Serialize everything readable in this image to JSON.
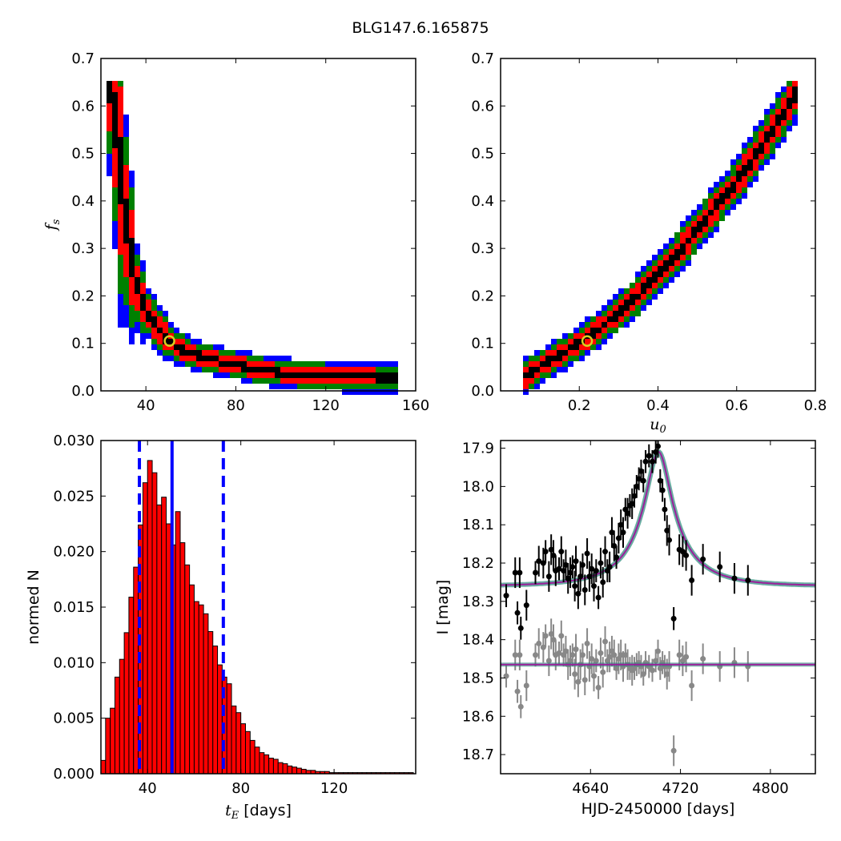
{
  "figure": {
    "title": "BLG147.6.165875"
  },
  "colors": {
    "black": "#000000",
    "red": "#ff0000",
    "green": "#008000",
    "blue": "#0000ff",
    "gray": "#888888",
    "purple": "#9b1f9b",
    "teal": "#2a8a7a",
    "yellow": "#d8d020"
  },
  "chart_data": [
    {
      "id": "fs_vs_tE",
      "type": "heatmap",
      "xlabel": "",
      "ylabel": "f_s",
      "xlim": [
        20,
        160
      ],
      "ylim": [
        0,
        0.7
      ],
      "xticks": [
        40,
        80,
        120,
        160
      ],
      "yticks": [
        0.0,
        0.1,
        0.2,
        0.3,
        0.4,
        0.5,
        0.6,
        0.7
      ],
      "ytick_labels": [
        "0.0",
        "0.1",
        "0.2",
        "0.3",
        "0.4",
        "0.5",
        "0.6",
        "0.7"
      ],
      "levels": [
        "black",
        "red",
        "green",
        "blue"
      ],
      "best_fit": {
        "x": 50.5,
        "y": 0.105
      },
      "ridge": [
        [
          24,
          0.65
        ],
        [
          26,
          0.58
        ],
        [
          28,
          0.5
        ],
        [
          30,
          0.4
        ],
        [
          33,
          0.3
        ],
        [
          36,
          0.22
        ],
        [
          40,
          0.17
        ],
        [
          45,
          0.135
        ],
        [
          50,
          0.105
        ],
        [
          55,
          0.09
        ],
        [
          60,
          0.078
        ],
        [
          70,
          0.065
        ],
        [
          80,
          0.055
        ],
        [
          90,
          0.045
        ],
        [
          100,
          0.038
        ],
        [
          115,
          0.032
        ],
        [
          130,
          0.029
        ],
        [
          152,
          0.027
        ]
      ]
    },
    {
      "id": "fs_vs_u0",
      "type": "heatmap",
      "xlabel": "u_0",
      "ylabel": "",
      "xlim": [
        0,
        0.8
      ],
      "ylim": [
        0,
        0.7
      ],
      "xticks": [
        0.2,
        0.4,
        0.6,
        0.8
      ],
      "xtick_labels": [
        "0.2",
        "0.4",
        "0.6",
        "0.8"
      ],
      "yticks": [
        0.0,
        0.1,
        0.2,
        0.3,
        0.4,
        0.5,
        0.6,
        0.7
      ],
      "ytick_labels": [
        "0.0",
        "0.1",
        "0.2",
        "0.3",
        "0.4",
        "0.5",
        "0.6",
        "0.7"
      ],
      "levels": [
        "black",
        "red",
        "green",
        "blue"
      ],
      "best_fit": {
        "x": 0.22,
        "y": 0.105
      },
      "ridge": [
        [
          0.06,
          0.027
        ],
        [
          0.1,
          0.05
        ],
        [
          0.15,
          0.075
        ],
        [
          0.2,
          0.1
        ],
        [
          0.25,
          0.13
        ],
        [
          0.3,
          0.165
        ],
        [
          0.35,
          0.2
        ],
        [
          0.4,
          0.245
        ],
        [
          0.45,
          0.29
        ],
        [
          0.5,
          0.34
        ],
        [
          0.55,
          0.39
        ],
        [
          0.6,
          0.44
        ],
        [
          0.65,
          0.5
        ],
        [
          0.7,
          0.56
        ],
        [
          0.76,
          0.64
        ]
      ]
    },
    {
      "id": "tE_histogram",
      "type": "bar",
      "xlabel": "t_E",
      "xlabel_unit": "[days]",
      "ylabel": "normed N",
      "xlim": [
        20,
        155
      ],
      "ylim": [
        0,
        0.03
      ],
      "xticks": [
        40,
        80,
        120
      ],
      "yticks": [
        0.0,
        0.005,
        0.01,
        0.015,
        0.02,
        0.025,
        0.03
      ],
      "ytick_labels": [
        "0.000",
        "0.005",
        "0.010",
        "0.015",
        "0.020",
        "0.025",
        "0.030"
      ],
      "bin_start": 20,
      "bin_width": 2,
      "values": [
        0.0012,
        0.005,
        0.0059,
        0.0087,
        0.0103,
        0.0127,
        0.0159,
        0.0186,
        0.0224,
        0.0262,
        0.0282,
        0.0271,
        0.0242,
        0.0249,
        0.0225,
        0.0206,
        0.0236,
        0.0208,
        0.0188,
        0.017,
        0.0155,
        0.0152,
        0.0144,
        0.0128,
        0.0115,
        0.0098,
        0.0087,
        0.0081,
        0.0061,
        0.0055,
        0.0045,
        0.0038,
        0.003,
        0.0024,
        0.0019,
        0.0017,
        0.0014,
        0.0013,
        0.001,
        0.0009,
        0.0007,
        0.0006,
        0.0005,
        0.0004,
        0.0003,
        0.0003,
        0.0002,
        0.0002,
        0.0002,
        0.0001,
        0.0001,
        0.0001,
        0.0001,
        0.0001,
        0.0001,
        0.0001,
        0.0001,
        0.0001,
        0.0001,
        0.0001,
        0.0001,
        0.0001,
        0.0001,
        0.0001,
        0.0001,
        0.0001,
        0.0001
      ],
      "vlines": [
        {
          "x": 36.5,
          "style": "dashed"
        },
        {
          "x": 50.5,
          "style": "solid"
        },
        {
          "x": 72.5,
          "style": "dashed"
        }
      ]
    },
    {
      "id": "light_curve",
      "type": "scatter",
      "xlabel": "HJD-2450000 [days]",
      "ylabel": "I [mag]",
      "xlim": [
        4560,
        4840
      ],
      "ylim": [
        18.75,
        17.88
      ],
      "y_inverted": true,
      "xticks": [
        4640,
        4720,
        4800
      ],
      "yticks": [
        17.9,
        18.0,
        18.1,
        18.2,
        18.3,
        18.4,
        18.5,
        18.6,
        18.7
      ],
      "ytick_labels": [
        "17.9",
        "18.0",
        "18.1",
        "18.2",
        "18.3",
        "18.4",
        "18.5",
        "18.6",
        "18.7"
      ],
      "model": {
        "t0": 4700.5,
        "tE": 50.5,
        "u0": 0.22,
        "fs": 0.105,
        "I_base": 18.26
      },
      "residual_baseline": 18.465,
      "series": [
        {
          "color": "black",
          "points": [
            [
              4565,
              18.285,
              0.03
            ],
            [
              4573,
              18.225,
              0.04
            ],
            [
              4575,
              18.33,
              0.03
            ],
            [
              4577,
              18.225,
              0.04
            ],
            [
              4578,
              18.37,
              0.03
            ],
            [
              4583,
              18.31,
              0.04
            ],
            [
              4591,
              18.225,
              0.03
            ],
            [
              4594,
              18.195,
              0.04
            ],
            [
              4598,
              18.2,
              0.04
            ],
            [
              4600,
              18.17,
              0.03
            ],
            [
              4603,
              18.235,
              0.04
            ],
            [
              4605,
              18.165,
              0.04
            ],
            [
              4607,
              18.18,
              0.04
            ],
            [
              4609,
              18.22,
              0.04
            ],
            [
              4612,
              18.215,
              0.03
            ],
            [
              4614,
              18.17,
              0.04
            ],
            [
              4616,
              18.22,
              0.03
            ],
            [
              4618,
              18.205,
              0.04
            ],
            [
              4620,
              18.24,
              0.04
            ],
            [
              4622,
              18.225,
              0.04
            ],
            [
              4624,
              18.21,
              0.03
            ],
            [
              4626,
              18.26,
              0.04
            ],
            [
              4627,
              18.195,
              0.04
            ],
            [
              4629,
              18.28,
              0.04
            ],
            [
              4631,
              18.235,
              0.04
            ],
            [
              4633,
              18.205,
              0.03
            ],
            [
              4635,
              18.27,
              0.04
            ],
            [
              4637,
              18.175,
              0.04
            ],
            [
              4639,
              18.235,
              0.04
            ],
            [
              4641,
              18.215,
              0.04
            ],
            [
              4643,
              18.26,
              0.04
            ],
            [
              4645,
              18.22,
              0.03
            ],
            [
              4647,
              18.29,
              0.03
            ],
            [
              4649,
              18.2,
              0.04
            ],
            [
              4651,
              18.25,
              0.04
            ],
            [
              4653,
              18.17,
              0.04
            ],
            [
              4655,
              18.22,
              0.03
            ],
            [
              4657,
              18.21,
              0.04
            ],
            [
              4659,
              18.12,
              0.04
            ],
            [
              4661,
              18.155,
              0.04
            ],
            [
              4663,
              18.185,
              0.03
            ],
            [
              4665,
              18.135,
              0.04
            ],
            [
              4667,
              18.1,
              0.04
            ],
            [
              4669,
              18.12,
              0.04
            ],
            [
              4671,
              18.06,
              0.03
            ],
            [
              4673,
              18.07,
              0.04
            ],
            [
              4675,
              18.05,
              0.03
            ],
            [
              4677,
              18.045,
              0.04
            ],
            [
              4679,
              18.025,
              0.03
            ],
            [
              4681,
              18.0,
              0.03
            ],
            [
              4683,
              17.98,
              0.03
            ],
            [
              4685,
              17.96,
              0.03
            ],
            [
              4687,
              17.985,
              0.03
            ],
            [
              4689,
              17.935,
              0.03
            ],
            [
              4692,
              17.92,
              0.03
            ],
            [
              4695,
              17.935,
              0.03
            ],
            [
              4698,
              17.91,
              0.03
            ],
            [
              4700,
              17.895,
              0.03
            ],
            [
              4702,
              17.985,
              0.03
            ],
            [
              4704,
              18.01,
              0.03
            ],
            [
              4706,
              18.06,
              0.03
            ],
            [
              4708,
              18.115,
              0.04
            ],
            [
              4710,
              18.14,
              0.04
            ],
            [
              4714,
              18.345,
              0.03
            ],
            [
              4719,
              18.165,
              0.04
            ],
            [
              4722,
              18.17,
              0.04
            ],
            [
              4725,
              18.18,
              0.04
            ],
            [
              4730,
              18.245,
              0.04
            ],
            [
              4740,
              18.19,
              0.04
            ],
            [
              4755,
              18.21,
              0.04
            ],
            [
              4768,
              18.24,
              0.04
            ],
            [
              4780,
              18.245,
              0.04
            ]
          ]
        },
        {
          "color": "gray",
          "points": [
            [
              4565,
              18.495,
              0.03
            ],
            [
              4573,
              18.44,
              0.04
            ],
            [
              4575,
              18.535,
              0.03
            ],
            [
              4577,
              18.44,
              0.04
            ],
            [
              4578,
              18.575,
              0.03
            ],
            [
              4583,
              18.52,
              0.04
            ],
            [
              4591,
              18.44,
              0.03
            ],
            [
              4594,
              18.41,
              0.04
            ],
            [
              4598,
              18.42,
              0.04
            ],
            [
              4600,
              18.39,
              0.03
            ],
            [
              4603,
              18.455,
              0.04
            ],
            [
              4605,
              18.385,
              0.04
            ],
            [
              4607,
              18.4,
              0.04
            ],
            [
              4609,
              18.44,
              0.04
            ],
            [
              4612,
              18.435,
              0.03
            ],
            [
              4614,
              18.39,
              0.04
            ],
            [
              4616,
              18.44,
              0.03
            ],
            [
              4618,
              18.43,
              0.04
            ],
            [
              4620,
              18.465,
              0.04
            ],
            [
              4622,
              18.455,
              0.04
            ],
            [
              4624,
              18.44,
              0.03
            ],
            [
              4626,
              18.49,
              0.04
            ],
            [
              4627,
              18.425,
              0.04
            ],
            [
              4629,
              18.51,
              0.04
            ],
            [
              4631,
              18.465,
              0.04
            ],
            [
              4633,
              18.44,
              0.03
            ],
            [
              4635,
              18.505,
              0.04
            ],
            [
              4637,
              18.41,
              0.04
            ],
            [
              4639,
              18.47,
              0.04
            ],
            [
              4641,
              18.45,
              0.04
            ],
            [
              4643,
              18.495,
              0.04
            ],
            [
              4645,
              18.455,
              0.03
            ],
            [
              4647,
              18.525,
              0.03
            ],
            [
              4649,
              18.435,
              0.04
            ],
            [
              4651,
              18.485,
              0.04
            ],
            [
              4653,
              18.405,
              0.04
            ],
            [
              4655,
              18.455,
              0.03
            ],
            [
              4657,
              18.445,
              0.04
            ],
            [
              4659,
              18.43,
              0.04
            ],
            [
              4661,
              18.44,
              0.04
            ],
            [
              4663,
              18.475,
              0.03
            ],
            [
              4665,
              18.45,
              0.04
            ],
            [
              4667,
              18.44,
              0.04
            ],
            [
              4669,
              18.47,
              0.04
            ],
            [
              4671,
              18.44,
              0.03
            ],
            [
              4673,
              18.465,
              0.04
            ],
            [
              4675,
              18.475,
              0.03
            ],
            [
              4677,
              18.48,
              0.04
            ],
            [
              4679,
              18.475,
              0.03
            ],
            [
              4681,
              18.465,
              0.03
            ],
            [
              4683,
              18.46,
              0.03
            ],
            [
              4685,
              18.47,
              0.03
            ],
            [
              4687,
              18.49,
              0.03
            ],
            [
              4689,
              18.46,
              0.03
            ],
            [
              4692,
              18.47,
              0.03
            ],
            [
              4695,
              18.48,
              0.03
            ],
            [
              4698,
              18.455,
              0.03
            ],
            [
              4700,
              18.43,
              0.03
            ],
            [
              4702,
              18.475,
              0.03
            ],
            [
              4704,
              18.46,
              0.03
            ],
            [
              4706,
              18.47,
              0.03
            ],
            [
              4708,
              18.49,
              0.04
            ],
            [
              4710,
              18.47,
              0.04
            ],
            [
              4714,
              18.69,
              0.04
            ],
            [
              4719,
              18.44,
              0.04
            ],
            [
              4722,
              18.455,
              0.04
            ],
            [
              4725,
              18.445,
              0.04
            ],
            [
              4730,
              18.52,
              0.04
            ],
            [
              4740,
              18.45,
              0.04
            ],
            [
              4755,
              18.47,
              0.04
            ],
            [
              4768,
              18.46,
              0.04
            ],
            [
              4780,
              18.47,
              0.04
            ]
          ]
        }
      ]
    }
  ]
}
